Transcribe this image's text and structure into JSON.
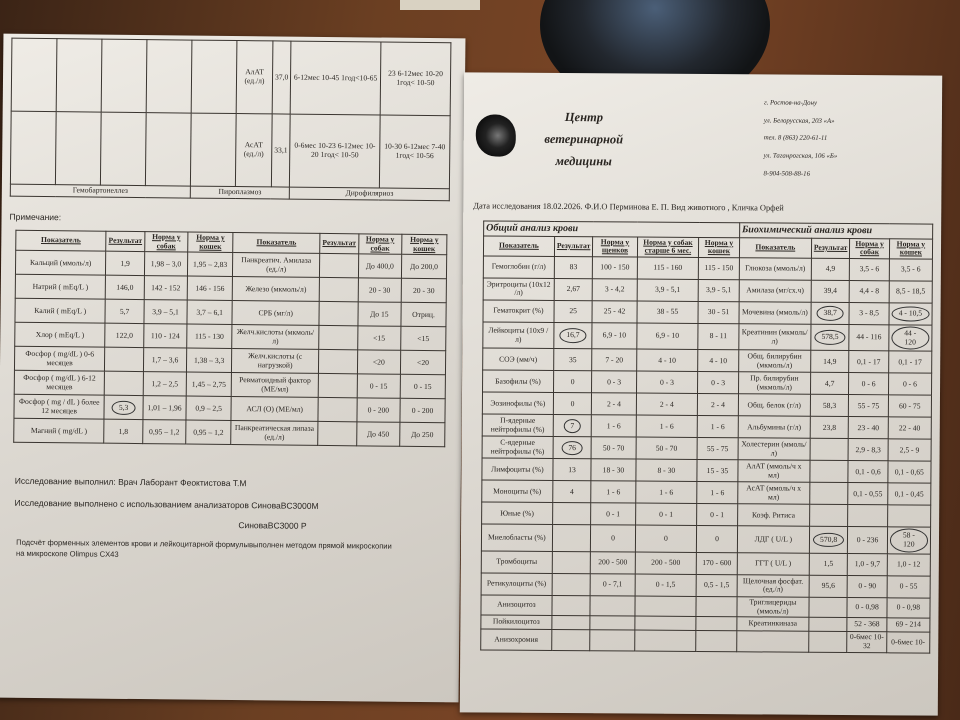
{
  "left_sheet": {
    "top_rows": [
      {
        "name": "АлАТ (ед./л)",
        "result": "37,0",
        "dog": "6-12мес 10-45 1год<10-65",
        "cat": "23 6-12мес 10-20 1год< 10-50"
      },
      {
        "name": "АсАТ (ед./л)",
        "result": "33,1",
        "dog": "0-6мес 10-23 6-12мес 10-20 1год< 10-50",
        "cat": "10-30 6-12мес 7-40 1год< 10-56"
      }
    ],
    "infections": [
      "Гемобартонеллез",
      "Пироплазмоз",
      "Дирофиляриоз"
    ],
    "note_label": "Примечание:",
    "headers": [
      "Показатель",
      "Результат",
      "Норма у собак",
      "Норма у кошек",
      "Показатель",
      "Результат",
      "Норма у собак",
      "Норма у кошек"
    ],
    "rows": [
      [
        "Кальций (ммоль/л)",
        "1,9",
        "1,98 – 3,0",
        "1,95 – 2,83",
        "Панкреатич. Амилаза (ед./л)",
        "",
        "До 400,0",
        "До 200,0"
      ],
      [
        "Натрий ( mEq/L )",
        "146,0",
        "142 - 152",
        "146 - 156",
        "Железо (мкмоль/л)",
        "",
        "20 - 30",
        "20 - 30"
      ],
      [
        "Калий ( mEq/L )",
        "5,7",
        "3,9 – 5,1",
        "3,7 – 6,1",
        "СРБ (мг/л)",
        "",
        "До 15",
        "Отриц."
      ],
      [
        "Хлор ( mEq/L )",
        "122,0",
        "110 - 124",
        "115 - 130",
        "Желч.кислоты (мкмоль/л)",
        "",
        "<15",
        "<15"
      ],
      [
        "Фосфор ( mg/dL ) 0-6 месяцев",
        "",
        "1,7 – 3,6",
        "1,38 – 3,3",
        "Желч.кислоты (с нагрузкой)",
        "",
        "<20",
        "<20"
      ],
      [
        "Фосфор ( mg/dL ) 6-12 месяцев",
        "",
        "1,2 – 2,5",
        "1,45 – 2,75",
        "Ревматоидный фактор (МЕ/мл)",
        "",
        "0 - 15",
        "0 - 15"
      ],
      [
        "Фосфор ( mg / dL ) более 12 месяцев",
        "5,3",
        "1,01 – 1,96",
        "0,9 – 2,5",
        "АСЛ (О) (МЕ/мл)",
        "",
        "0 - 200",
        "0 - 200"
      ],
      [
        "Магний ( mg/dL )",
        "1,8",
        "0,95 – 1,2",
        "0,95 – 1,2",
        "Панкреатическая липаза (ед./л)",
        "",
        "До 450",
        "До 250"
      ]
    ],
    "circled": [
      "6-1"
    ],
    "performed_by": "Исследование выполнил: Врач Лаборант Феоктистова Т.М",
    "analyzers": "Исследование выполнено с использованием анализаторов СиноваBC3000M",
    "analyzer2": "СиноваBC3000 P",
    "method_line1": "Подсчёт форменных элементов крови и лейкоцитарной формулывыполнен методом прямой микроскопии",
    "method_line2": "на микроскопе Olimpus CX43"
  },
  "right_sheet": {
    "clinic_name": [
      "Центр",
      "ветеринарной",
      "медицины"
    ],
    "address": [
      "г. Ростов-на-Дону",
      "ул. Белорусская, 203 «А»",
      "тел. 8 (863) 220-61-11",
      "ул. Таганрогская, 106 «Б»",
      "8-904-508-88-16"
    ],
    "patient_line": "Дата исследования  18.02.2026. Ф.И.О   Перминова Е. П.   Вид животного  , Кличка  Орфей",
    "section_cbc": "Общий анализ крови",
    "section_bio": "Биохимический анализ крови",
    "headers": [
      "Показатель",
      "Результат",
      "Норма у щенков",
      "Норма у собак старше 6 мес.",
      "Норма у кошек",
      "Показатель",
      "Результат",
      "Норма у собак",
      "Норма у кошек"
    ],
    "rows": [
      [
        "Гемоглобин (г/л)",
        "83",
        "100 - 150",
        "115 - 160",
        "115 - 150",
        "Глюкоза (ммоль/л)",
        "4,9",
        "3,5 - 6",
        "3,5 - 6"
      ],
      [
        "Эритроциты (10х12 /л)",
        "2,67",
        "3 - 4,2",
        "3,9 - 5,1",
        "3,9 - 5,1",
        "Амилаза (мг/сх.ч)",
        "39,4",
        "4,4 - 8",
        "8,5 - 18,5"
      ],
      [
        "Гематокрит (%)",
        "25",
        "25 - 42",
        "38 - 55",
        "30 - 51",
        "Мочевина (ммоль/л)",
        "38,7",
        "3 - 8,5",
        "4 - 10,5"
      ],
      [
        "Лейкоциты (10х9 /л)",
        "16,7",
        "6,9 - 10",
        "6,9 - 10",
        "8 - 11",
        "Креатинин (мкмоль/л)",
        "578,5",
        "44 - 116",
        "44 - 120"
      ],
      [
        "СОЭ (мм/ч)",
        "35",
        "7 - 20",
        "4 - 10",
        "4 - 10",
        "Общ. билирубин (мкмоль/л)",
        "14,9",
        "0,1 - 17",
        "0,1 - 17"
      ],
      [
        "Базофилы (%)",
        "0",
        "0 - 3",
        "0 - 3",
        "0 - 3",
        "Пр. билирубин (мкмоль/л)",
        "4,7",
        "0 - 6",
        "0 - 6"
      ],
      [
        "Эозинофилы (%)",
        "0",
        "2 - 4",
        "2 - 4",
        "2 - 4",
        "Общ. белок (г/л)",
        "58,3",
        "55 - 75",
        "60 - 75"
      ],
      [
        "П-ядерные нейтрофилы (%)",
        "7",
        "1 - 6",
        "1 - 6",
        "1 - 6",
        "Альбумины (г/л)",
        "23,8",
        "23 - 40",
        "22 - 40"
      ],
      [
        "С-ядерные нейтрофилы (%)",
        "76",
        "50 - 70",
        "50 - 70",
        "55 - 75",
        "Холестерин (ммоль/л)",
        "",
        "2,9 - 8,3",
        "2,5 - 9"
      ],
      [
        "Лимфоциты (%)",
        "13",
        "18 - 30",
        "8 - 30",
        "15 - 35",
        "АлАТ (ммоль/ч х мл)",
        "",
        "0,1 - 0,6",
        "0,1 - 0,65"
      ],
      [
        "Моноциты (%)",
        "4",
        "1 - 6",
        "1 - 6",
        "1 - 6",
        "АсАТ (ммоль/ч х мл)",
        "",
        "0,1 - 0,55",
        "0,1 - 0,45"
      ],
      [
        "Юные (%)",
        "",
        "0 - 1",
        "0 - 1",
        "0 - 1",
        "Коэф. Ритиса",
        "",
        "",
        ""
      ],
      [
        "Миелобласты (%)",
        "",
        "0",
        "0",
        "0",
        "ЛДГ ( U/L )",
        "570,8",
        "0 - 236",
        "58 - 120"
      ],
      [
        "Тромбоциты",
        "",
        "200 - 500",
        "200 - 500",
        "170 - 600",
        "ГГТ ( U/L )",
        "1,5",
        "1,0 - 9,7",
        "1,0 - 12"
      ],
      [
        "Ретикулоциты (%)",
        "",
        "0 - 7,1",
        "0 - 1,5",
        "0,5 - 1,5",
        "Щелочная фосфат.(ед./л)",
        "95,6",
        "0 - 90",
        "0 - 55"
      ],
      [
        "Анизоцитоз",
        "",
        "",
        "",
        "",
        "Триглицериды (ммоль/л)",
        "",
        "0 - 0,98",
        "0 - 0,98"
      ],
      [
        "Пойкилоцитоз",
        "",
        "",
        "",
        "",
        "Креатинкиназа",
        "",
        "52 - 368",
        "69 - 214"
      ],
      [
        "Анизохромия",
        "",
        "",
        "",
        "",
        "",
        "",
        "0-6мес 10-32",
        "0-6мес 10-"
      ]
    ],
    "circled": [
      "2-6",
      "2-8",
      "3-1",
      "3-6",
      "3-8",
      "7-1",
      "8-1",
      "12-6",
      "12-8"
    ]
  }
}
